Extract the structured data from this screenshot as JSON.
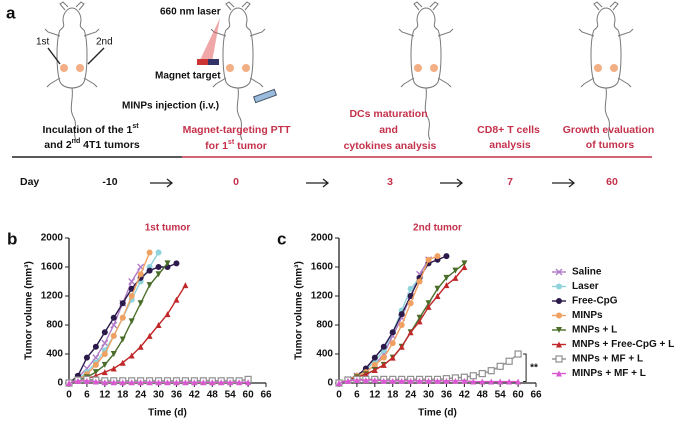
{
  "panel_a": {
    "label": "a",
    "mouse_labels": [
      "1st",
      "2nd"
    ],
    "laser": "660 nm laser",
    "magnet": "Magnet target",
    "injection": "MINPs injection (i.v.)",
    "steps": [
      {
        "lines": [
          [
            "Inculation of the 1",
            "st"
          ],
          [
            "and 2",
            "nd",
            " 4T1 tumors"
          ]
        ]
      },
      {
        "lines": [
          [
            "Magnet-targeting PTT"
          ],
          [
            "for 1",
            "st",
            " tumor"
          ]
        ]
      },
      {
        "lines": [
          [
            "DCs maturation"
          ],
          [
            "and"
          ],
          [
            "cytokines analysis"
          ]
        ]
      },
      {
        "lines": [
          [
            "CD8+ T cells"
          ],
          [
            "analysis"
          ]
        ]
      },
      {
        "lines": [
          [
            "Growth evaluation"
          ],
          [
            "of tumors"
          ]
        ]
      }
    ],
    "day_label": "Day",
    "days": [
      "-10",
      "0",
      "3",
      "7",
      "60"
    ]
  },
  "chart_data": [
    {
      "type": "line",
      "panel": "b",
      "title": "1st tumor",
      "x_label": "Time (d)",
      "y_label": "Tumor volume (mm³)",
      "x": [
        0,
        3,
        6,
        9,
        12,
        15,
        18,
        21,
        24,
        27,
        30,
        33,
        36,
        39,
        42,
        45,
        48,
        51,
        54,
        57,
        60
      ],
      "xlim": [
        0,
        66
      ],
      "xticks": [
        0,
        6,
        12,
        18,
        24,
        30,
        36,
        42,
        48,
        54,
        60,
        66
      ],
      "ylim": [
        0,
        2000
      ],
      "yticks": [
        0,
        400,
        800,
        1200,
        1600,
        2000
      ],
      "series": [
        {
          "color": "#b07cc6",
          "marker": "x",
          "values": [
            0,
            80,
            200,
            350,
            550,
            800,
            1100,
            1400,
            1600,
            null,
            null,
            null,
            null,
            null,
            null,
            null,
            null,
            null,
            null,
            null,
            null
          ]
        },
        {
          "color": "#8fd3dc",
          "marker": "circle",
          "values": [
            0,
            60,
            150,
            280,
            450,
            650,
            900,
            1150,
            1400,
            1600,
            1800,
            null,
            null,
            null,
            null,
            null,
            null,
            null,
            null,
            null,
            null
          ]
        },
        {
          "color": "#2b1a4a",
          "marker": "circle",
          "values": [
            0,
            100,
            350,
            500,
            700,
            900,
            1100,
            1300,
            1450,
            1550,
            1600,
            1600,
            1650,
            null,
            null,
            null,
            null,
            null,
            null,
            null,
            null
          ]
        },
        {
          "color": "#f0a060",
          "marker": "circle",
          "values": [
            0,
            50,
            120,
            250,
            400,
            650,
            900,
            1200,
            1500,
            1800,
            null,
            null,
            null,
            null,
            null,
            null,
            null,
            null,
            null,
            null,
            null
          ]
        },
        {
          "color": "#4a6e2a",
          "marker": "triangle-down",
          "values": [
            0,
            40,
            80,
            150,
            250,
            400,
            600,
            850,
            1100,
            1350,
            1500,
            1650,
            null,
            null,
            null,
            null,
            null,
            null,
            null,
            null,
            null
          ]
        },
        {
          "color": "#c0282a",
          "marker": "triangle",
          "values": [
            0,
            30,
            60,
            100,
            150,
            200,
            280,
            380,
            500,
            650,
            800,
            950,
            1150,
            1350,
            null,
            null,
            null,
            null,
            null,
            null,
            null
          ]
        },
        {
          "color": "#909090",
          "marker": "square",
          "values": [
            0,
            40,
            50,
            40,
            30,
            30,
            30,
            30,
            30,
            30,
            30,
            30,
            30,
            30,
            30,
            30,
            30,
            30,
            30,
            30,
            50
          ]
        },
        {
          "color": "#d858d0",
          "marker": "triangle",
          "values": [
            0,
            30,
            30,
            20,
            10,
            10,
            10,
            10,
            10,
            10,
            10,
            10,
            10,
            10,
            10,
            10,
            10,
            10,
            10,
            10,
            10
          ]
        }
      ]
    },
    {
      "type": "line",
      "panel": "c",
      "title": "2nd tumor",
      "x_label": "Time (d)",
      "y_label": "Tumor volume (mm³)",
      "x": [
        0,
        3,
        6,
        9,
        12,
        15,
        18,
        21,
        24,
        27,
        30,
        33,
        36,
        39,
        42,
        45,
        48,
        51,
        54,
        57,
        60
      ],
      "xlim": [
        0,
        66
      ],
      "xticks": [
        0,
        6,
        12,
        18,
        24,
        30,
        36,
        42,
        48,
        54,
        60,
        66
      ],
      "ylim": [
        0,
        2000
      ],
      "yticks": [
        0,
        400,
        800,
        1200,
        1600,
        2000
      ],
      "legend": "right",
      "annotation": "**",
      "series": [
        {
          "name": "Saline",
          "color": "#b07cc6",
          "marker": "x",
          "values": [
            0,
            50,
            100,
            150,
            250,
            400,
            650,
            900,
            1200,
            1500,
            1700,
            null,
            null,
            null,
            null,
            null,
            null,
            null,
            null,
            null,
            null
          ]
        },
        {
          "name": "Laser",
          "color": "#8fd3dc",
          "marker": "circle",
          "values": [
            0,
            50,
            100,
            180,
            300,
            450,
            700,
            1000,
            1300,
            1450,
            null,
            null,
            null,
            null,
            null,
            null,
            null,
            null,
            null,
            null,
            null
          ]
        },
        {
          "name": "Free-CpG",
          "color": "#2b1a4a",
          "marker": "circle",
          "values": [
            0,
            50,
            100,
            200,
            350,
            500,
            700,
            950,
            1200,
            1450,
            1650,
            1700,
            1750,
            null,
            null,
            null,
            null,
            null,
            null,
            null,
            null
          ]
        },
        {
          "name": "MINPs",
          "color": "#f0a060",
          "marker": "circle",
          "values": [
            0,
            50,
            100,
            150,
            250,
            350,
            550,
            800,
            1100,
            1400,
            1700,
            1750,
            null,
            null,
            null,
            null,
            null,
            null,
            null,
            null,
            null
          ]
        },
        {
          "name": "MNPs + L",
          "color": "#4a6e2a",
          "marker": "triangle-down",
          "values": [
            0,
            40,
            80,
            120,
            180,
            250,
            350,
            500,
            700,
            900,
            1100,
            1300,
            1450,
            1550,
            1650,
            null,
            null,
            null,
            null,
            null,
            null
          ]
        },
        {
          "name": "MNPs + Free-CpG + L",
          "color": "#c0282a",
          "marker": "triangle",
          "values": [
            0,
            40,
            80,
            120,
            180,
            250,
            350,
            500,
            700,
            850,
            1050,
            1200,
            1350,
            1450,
            1600,
            null,
            null,
            null,
            null,
            null,
            null
          ]
        },
        {
          "name": "MNPs + MF + L",
          "color": "#909090",
          "marker": "square",
          "values": [
            0,
            40,
            50,
            50,
            50,
            50,
            50,
            50,
            50,
            50,
            50,
            50,
            60,
            70,
            80,
            100,
            130,
            170,
            230,
            300,
            400
          ]
        },
        {
          "name": "MINPs + MF + L",
          "color": "#d858d0",
          "marker": "triangle",
          "values": [
            0,
            30,
            40,
            40,
            40,
            30,
            30,
            30,
            30,
            30,
            30,
            30,
            30,
            30,
            30,
            20,
            20,
            20,
            20,
            20,
            20
          ]
        }
      ]
    }
  ]
}
